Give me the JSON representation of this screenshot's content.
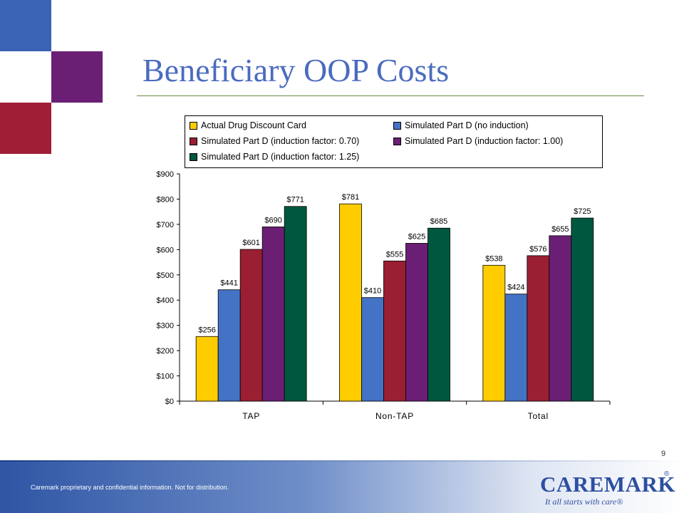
{
  "slide": {
    "title": "Beneficiary OOP Costs",
    "page_number": "9",
    "footer_text": "Caremark proprietary and confidential information. Not for distribution.",
    "logo_text": "CAREMARK",
    "logo_registered": "®",
    "tagline": "It all starts with care®"
  },
  "colors": {
    "title": "#4a6bbf",
    "square_blue": "#3b63b5",
    "square_purple": "#6a1f74",
    "square_red": "#a01f36",
    "footer_blue": "#2f55a4"
  },
  "chart_data": {
    "type": "bar",
    "categories": [
      "TAP",
      "Non-TAP",
      "Total"
    ],
    "series": [
      {
        "name": "Actual Drug Discount Card",
        "color": "#ffcc00",
        "values": [
          256,
          781,
          538
        ],
        "labels": [
          "$256",
          "$781",
          "$538"
        ]
      },
      {
        "name": "Simulated Part D (no induction)",
        "color": "#4472c4",
        "values": [
          441,
          410,
          424
        ],
        "labels": [
          "$441",
          "$410",
          "$424"
        ]
      },
      {
        "name": "Simulated Part D (induction factor: 0.70)",
        "color": "#9b1f32",
        "values": [
          601,
          555,
          576
        ],
        "labels": [
          "$601",
          "$555",
          "$576"
        ]
      },
      {
        "name": "Simulated Part D (induction factor: 1.00)",
        "color": "#6a1f74",
        "values": [
          690,
          625,
          655
        ],
        "labels": [
          "$690",
          "$625",
          "$655"
        ]
      },
      {
        "name": "Simulated Part D (induction factor: 1.25)",
        "color": "#00573f",
        "values": [
          771,
          685,
          725
        ],
        "labels": [
          "$771",
          "$685",
          "$725"
        ]
      }
    ],
    "yticks": [
      "$0",
      "$100",
      "$200",
      "$300",
      "$400",
      "$500",
      "$600",
      "$700",
      "$800",
      "$900"
    ],
    "ylim": [
      0,
      900
    ],
    "grid": false,
    "legend_position": "top"
  }
}
